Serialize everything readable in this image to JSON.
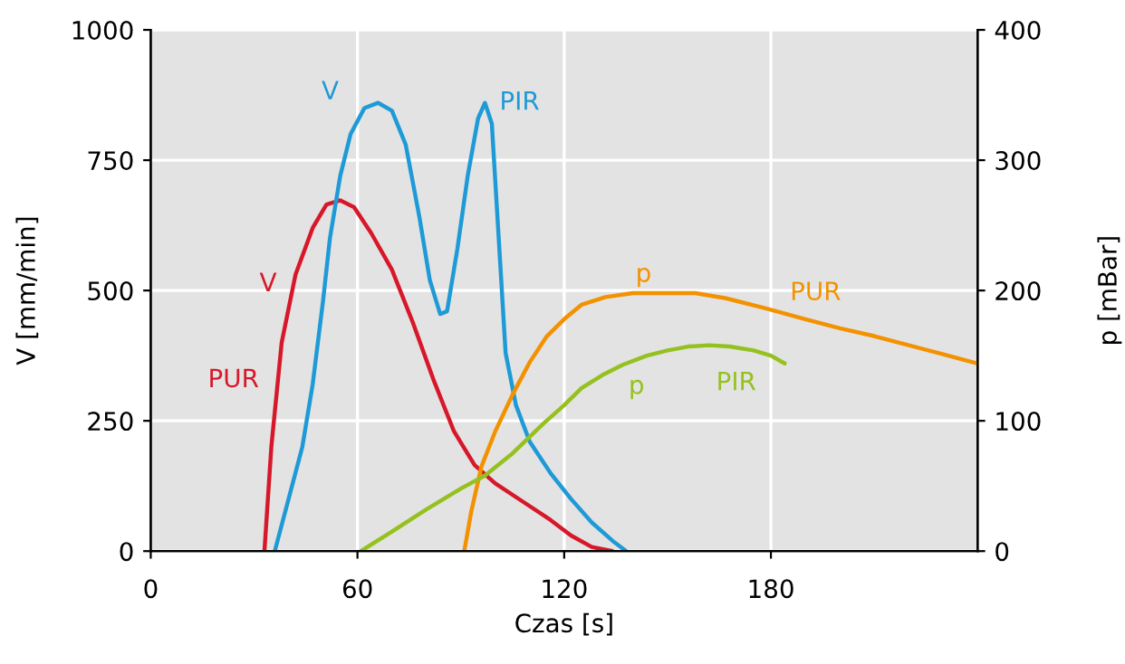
{
  "chart_data": {
    "type": "line",
    "xlabel": "Czas [s]",
    "ylabel": "V [mm/min]",
    "y2label": "p [mBar]",
    "xlim": [
      0,
      240
    ],
    "xticks": [
      0,
      60,
      120,
      180
    ],
    "ylim": [
      0,
      1000
    ],
    "yticks": [
      0,
      250,
      500,
      750,
      1000
    ],
    "y2lim": [
      0,
      400
    ],
    "y2ticks": [
      0,
      100,
      200,
      300,
      400
    ],
    "grid": true,
    "marker": "none",
    "line_style": "solid",
    "series": [
      {
        "name": "PUR",
        "color": "#d7182a",
        "x": [
          33,
          35,
          38,
          42,
          47,
          51,
          55,
          59,
          64,
          70,
          76,
          82,
          88,
          94,
          100,
          108,
          116,
          122,
          128,
          134
        ],
        "values": [
          0,
          200,
          400,
          530,
          620,
          665,
          673,
          660,
          610,
          540,
          440,
          330,
          230,
          165,
          130,
          95,
          60,
          30,
          8,
          0
        ]
      },
      {
        "name": "PIR",
        "color": "#1e9ad6",
        "x": [
          36,
          40,
          44,
          47,
          50,
          52,
          55,
          58,
          62,
          66,
          70,
          74,
          78,
          81,
          84,
          86,
          89,
          92,
          95,
          97,
          99,
          101,
          103,
          106,
          110,
          116,
          122,
          128,
          134,
          138
        ],
        "values": [
          0,
          100,
          200,
          320,
          480,
          600,
          720,
          800,
          850,
          860,
          845,
          780,
          640,
          520,
          455,
          460,
          580,
          720,
          830,
          860,
          820,
          600,
          380,
          280,
          210,
          150,
          100,
          55,
          20,
          0
        ]
      },
      {
        "name": "PUR",
        "color": "#f39200",
        "axis": "y2",
        "x": [
          91,
          93,
          96,
          100,
          105,
          110,
          115,
          120,
          125,
          132,
          140,
          150,
          158,
          167,
          179,
          190,
          200,
          210,
          220,
          230,
          240
        ],
        "values": [
          0,
          30,
          65,
          92,
          120,
          145,
          165,
          178,
          189,
          195,
          198,
          198,
          198,
          194,
          186,
          178,
          171,
          165,
          158,
          151,
          144
        ]
      },
      {
        "name": "PIR",
        "color": "#95c11f",
        "axis": "y2",
        "x": [
          61,
          70,
          80,
          90,
          97,
          105,
          114,
          120,
          125,
          131,
          137,
          144,
          150,
          156,
          162,
          168,
          175,
          180,
          184
        ],
        "values": [
          0,
          15,
          32,
          48,
          58,
          75,
          98,
          112,
          125,
          135,
          143,
          150,
          154,
          157,
          158,
          157,
          154,
          150,
          144
        ]
      }
    ],
    "annotations": [
      "V",
      "V",
      "p",
      "p"
    ]
  }
}
